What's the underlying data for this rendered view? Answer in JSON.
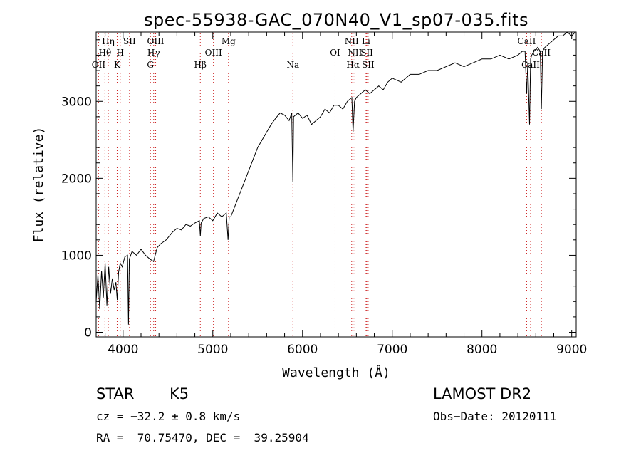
{
  "chart_data": {
    "type": "line",
    "title": "spec-55938-GAC_070N40_V1_sp07-035.fits",
    "xlabel": "Wavelength (Å)",
    "ylabel": "Flux (relative)",
    "xlim": [
      3700,
      9050
    ],
    "ylim": [
      -60,
      3900
    ],
    "x_ticks": [
      4000,
      5000,
      6000,
      7000,
      8000,
      9000
    ],
    "y_ticks": [
      0,
      1000,
      2000,
      3000
    ],
    "grid": false,
    "series": [
      {
        "values_x": [
          3700,
          3720,
          3740,
          3760,
          3780,
          3800,
          3820,
          3840,
          3860,
          3880,
          3900,
          3920,
          3935,
          3950,
          3968,
          3990,
          4020,
          4050,
          4060,
          4070,
          4100,
          4150,
          4200,
          4250,
          4300,
          4340,
          4380,
          4420,
          4480,
          4550,
          4600,
          4650,
          4700,
          4750,
          4800,
          4850,
          4861,
          4870,
          4900,
          4950,
          5000,
          5050,
          5100,
          5150,
          5170,
          5183,
          5200,
          5250,
          5300,
          5350,
          5400,
          5450,
          5500,
          5550,
          5600,
          5650,
          5700,
          5750,
          5800,
          5850,
          5880,
          5892,
          5900,
          5950,
          6000,
          6050,
          6100,
          6150,
          6200,
          6250,
          6300,
          6350,
          6400,
          6450,
          6500,
          6550,
          6563,
          6580,
          6600,
          6650,
          6700,
          6750,
          6800,
          6850,
          6900,
          6950,
          7000,
          7100,
          7200,
          7300,
          7400,
          7500,
          7600,
          7700,
          7800,
          7900,
          8000,
          8100,
          8200,
          8300,
          8400,
          8450,
          8480,
          8498,
          8510,
          8530,
          8542,
          8555,
          8580,
          8620,
          8650,
          8662,
          8675,
          8700,
          8750,
          8800,
          8850,
          8900,
          8950,
          9000,
          9040
        ],
        "values_y": [
          400,
          750,
          300,
          800,
          450,
          900,
          350,
          850,
          500,
          700,
          550,
          650,
          420,
          780,
          900,
          850,
          980,
          1000,
          100,
          950,
          1050,
          1000,
          1080,
          1000,
          950,
          920,
          1100,
          1150,
          1200,
          1300,
          1350,
          1330,
          1400,
          1380,
          1420,
          1450,
          1250,
          1420,
          1480,
          1500,
          1450,
          1550,
          1500,
          1550,
          1200,
          1500,
          1500,
          1650,
          1800,
          1950,
          2100,
          2250,
          2400,
          2500,
          2600,
          2700,
          2780,
          2850,
          2820,
          2750,
          2850,
          1950,
          2800,
          2850,
          2780,
          2820,
          2700,
          2750,
          2800,
          2900,
          2850,
          2950,
          2950,
          2900,
          3000,
          3050,
          2600,
          3000,
          3050,
          3100,
          3150,
          3100,
          3150,
          3200,
          3150,
          3250,
          3300,
          3250,
          3350,
          3350,
          3400,
          3400,
          3450,
          3500,
          3450,
          3500,
          3550,
          3550,
          3600,
          3550,
          3600,
          3650,
          3650,
          3100,
          3500,
          2700,
          3550,
          3600,
          3650,
          3700,
          3650,
          2900,
          3650,
          3700,
          3750,
          3800,
          3850,
          3850,
          3900,
          3850,
          3900
        ]
      }
    ],
    "line_markers": [
      {
        "label": "OII",
        "x": 3727,
        "row": 3
      },
      {
        "label": "Hη",
        "x": 3835,
        "row": 1
      },
      {
        "label": "Hθ",
        "x": 3798,
        "row": 2
      },
      {
        "label": "H",
        "x": 3968,
        "row": 2
      },
      {
        "label": "K",
        "x": 3934,
        "row": 3
      },
      {
        "label": "SII",
        "x": 4072,
        "row": 1
      },
      {
        "label": "OIII",
        "x": 4363,
        "row": 1
      },
      {
        "label": "Hγ",
        "x": 4341,
        "row": 2
      },
      {
        "label": "G",
        "x": 4305,
        "row": 3
      },
      {
        "label": "Hβ",
        "x": 4861,
        "row": 3
      },
      {
        "label": "OIII",
        "x": 5007,
        "row": 2
      },
      {
        "label": "Mg",
        "x": 5175,
        "row": 1
      },
      {
        "label": "Na",
        "x": 5893,
        "row": 3
      },
      {
        "label": "OI",
        "x": 6363,
        "row": 2
      },
      {
        "label": "NII",
        "x": 6548,
        "row": 1
      },
      {
        "label": "NII",
        "x": 6584,
        "row": 2
      },
      {
        "label": "Hα",
        "x": 6563,
        "row": 3
      },
      {
        "label": "Li",
        "x": 6708,
        "row": 1
      },
      {
        "label": "SII",
        "x": 6717,
        "row": 2
      },
      {
        "label": "SII",
        "x": 6731,
        "row": 3
      },
      {
        "label": "CaII",
        "x": 8498,
        "row": 1
      },
      {
        "label": "CaII",
        "x": 8542,
        "row": 3
      },
      {
        "label": "CaII",
        "x": 8662,
        "row": 2
      }
    ]
  },
  "info": {
    "object_class": "STAR",
    "subclass": "K5",
    "survey": "LAMOST DR2",
    "redshift": "cz = −32.2 ± 0.8 km/s",
    "obs_date": "Obs−Date: 20120111",
    "coords": "RA =  70.75470, DEC =  39.25904"
  }
}
